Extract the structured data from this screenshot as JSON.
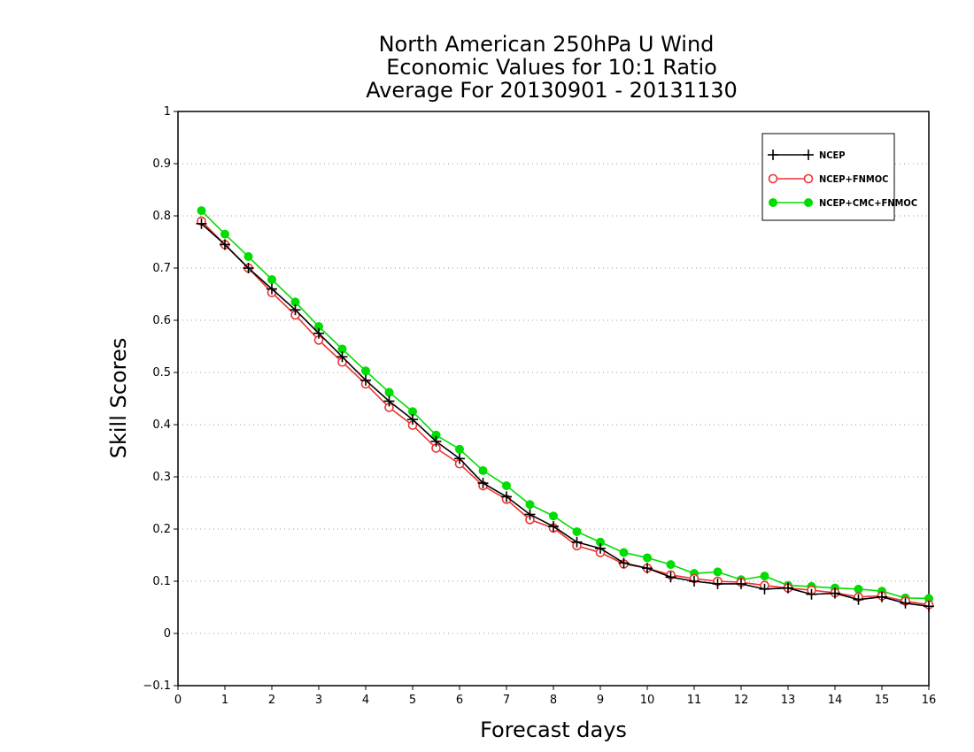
{
  "chart_data": {
    "type": "line",
    "title": [
      "North American 250hPa U Wind",
      "Economic Values for 10:1 Ratio",
      "Average For 20130901 - 20131130"
    ],
    "xlabel": "Forecast days",
    "ylabel": "Skill Scores",
    "xlim": [
      0,
      16
    ],
    "ylim": [
      -0.1,
      1
    ],
    "xticks": [
      "0",
      "1",
      "2",
      "3",
      "4",
      "5",
      "6",
      "7",
      "8",
      "9",
      "10",
      "11",
      "12",
      "13",
      "14",
      "15",
      "16"
    ],
    "yticks": [
      "−0.1",
      "0",
      "0.1",
      "0.2",
      "0.3",
      "0.4",
      "0.5",
      "0.6",
      "0.7",
      "0.8",
      "0.9",
      "1"
    ],
    "grid": true,
    "legend_position": "top-right",
    "x": [
      0.5,
      1,
      1.5,
      2,
      2.5,
      3,
      3.5,
      4,
      4.5,
      5,
      5.5,
      6,
      6.5,
      7,
      7.5,
      8,
      8.5,
      9,
      9.5,
      10,
      10.5,
      11,
      11.5,
      12,
      12.5,
      13,
      13.5,
      14,
      14.5,
      15,
      15.5,
      16
    ],
    "series": [
      {
        "name": "NCEP",
        "color": "#000000",
        "marker": "plus",
        "values": [
          0.785,
          0.745,
          0.7,
          0.66,
          0.62,
          0.575,
          0.53,
          0.485,
          0.445,
          0.41,
          0.368,
          0.335,
          0.288,
          0.262,
          0.228,
          0.205,
          0.175,
          0.163,
          0.135,
          0.125,
          0.108,
          0.1,
          0.095,
          0.095,
          0.085,
          0.087,
          0.075,
          0.077,
          0.065,
          0.07,
          0.058,
          0.052
        ]
      },
      {
        "name": "NCEP+FNMOC",
        "color": "#ee3333",
        "marker": "open-circle",
        "values": [
          0.79,
          0.745,
          0.7,
          0.653,
          0.61,
          0.562,
          0.52,
          0.478,
          0.433,
          0.399,
          0.355,
          0.325,
          0.283,
          0.257,
          0.218,
          0.202,
          0.168,
          0.155,
          0.133,
          0.125,
          0.112,
          0.105,
          0.1,
          0.098,
          0.092,
          0.087,
          0.083,
          0.078,
          0.07,
          0.072,
          0.062,
          0.055
        ]
      },
      {
        "name": "NCEP+CMC+FNMOC",
        "color": "#00dd00",
        "marker": "filled-circle",
        "values": [
          0.81,
          0.765,
          0.722,
          0.678,
          0.635,
          0.588,
          0.545,
          0.503,
          0.462,
          0.425,
          0.38,
          0.353,
          0.312,
          0.283,
          0.247,
          0.225,
          0.195,
          0.175,
          0.155,
          0.145,
          0.132,
          0.115,
          0.118,
          0.103,
          0.11,
          0.092,
          0.09,
          0.087,
          0.085,
          0.081,
          0.068,
          0.067
        ]
      }
    ]
  }
}
